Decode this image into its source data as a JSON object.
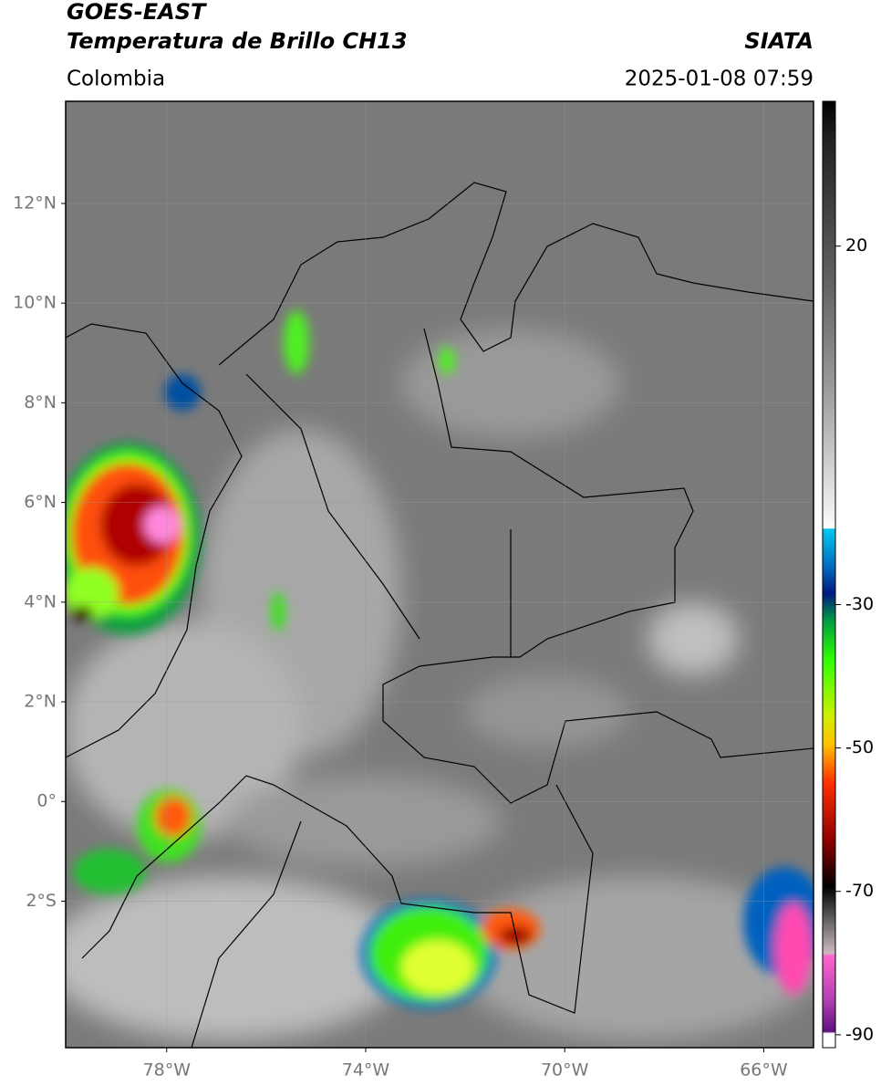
{
  "header": {
    "title": "GOES-EAST",
    "subtitle": "Temperatura de Brillo CH13",
    "source": "SIATA",
    "region": "Colombia",
    "datetime": "2025-01-08 07:59"
  },
  "map": {
    "xlim": [
      -80.03,
      -65.0
    ],
    "ylim": [
      -4.94,
      14.05
    ],
    "grid": true,
    "xticks": [
      {
        "value": -78,
        "label": "78°W"
      },
      {
        "value": -74,
        "label": "74°W"
      },
      {
        "value": -70,
        "label": "70°W"
      },
      {
        "value": -66,
        "label": "66°W"
      }
    ],
    "yticks": [
      {
        "value": 12,
        "label": "12°N"
      },
      {
        "value": 10,
        "label": "10°N"
      },
      {
        "value": 8,
        "label": "8°N"
      },
      {
        "value": 6,
        "label": "6°N"
      },
      {
        "value": 4,
        "label": "4°N"
      },
      {
        "value": 2,
        "label": "2°N"
      },
      {
        "value": 0,
        "label": "0°"
      },
      {
        "value": -2,
        "label": "2°S"
      }
    ]
  },
  "colorbar": {
    "lim": [
      -91.8,
      40.2
    ],
    "ticks": [
      20,
      -30,
      -50,
      -70,
      -90
    ]
  }
}
